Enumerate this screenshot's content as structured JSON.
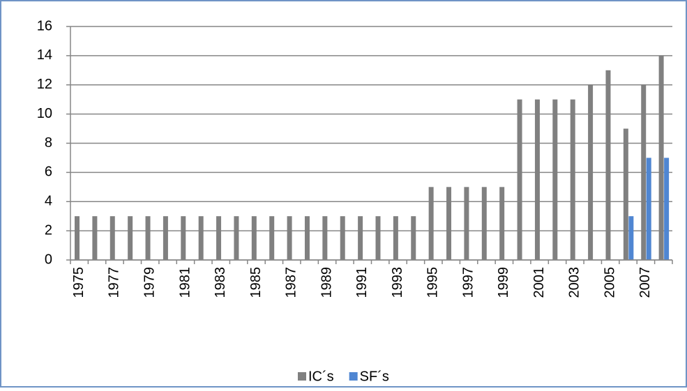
{
  "chart_data": {
    "type": "bar",
    "categories": [
      "1975",
      null,
      "1977",
      null,
      "1979",
      null,
      "1981",
      null,
      "1983",
      null,
      "1985",
      null,
      "1987",
      null,
      "1989",
      null,
      "1991",
      null,
      "1993",
      null,
      "1995",
      null,
      "1997",
      null,
      "1999",
      null,
      "2001",
      null,
      "2003",
      null,
      "2005",
      null,
      "2007",
      null
    ],
    "series": [
      {
        "name": "IC´s",
        "color": "#808080",
        "values": [
          3,
          3,
          3,
          3,
          3,
          3,
          3,
          3,
          3,
          3,
          3,
          3,
          3,
          3,
          3,
          3,
          3,
          3,
          3,
          3,
          5,
          5,
          5,
          5,
          5,
          11,
          11,
          11,
          11,
          12,
          13,
          9,
          12,
          14
        ]
      },
      {
        "name": "SF´s",
        "color": "#4f86d2",
        "values": [
          null,
          null,
          null,
          null,
          null,
          null,
          null,
          null,
          null,
          null,
          null,
          null,
          null,
          null,
          null,
          null,
          null,
          null,
          null,
          null,
          null,
          null,
          null,
          null,
          null,
          null,
          null,
          null,
          null,
          null,
          null,
          3,
          7,
          7
        ]
      }
    ],
    "ylim": [
      0,
      16
    ],
    "yticks": [
      0,
      2,
      4,
      6,
      8,
      10,
      12,
      14,
      16
    ],
    "grid": true,
    "legend": "bottom"
  }
}
